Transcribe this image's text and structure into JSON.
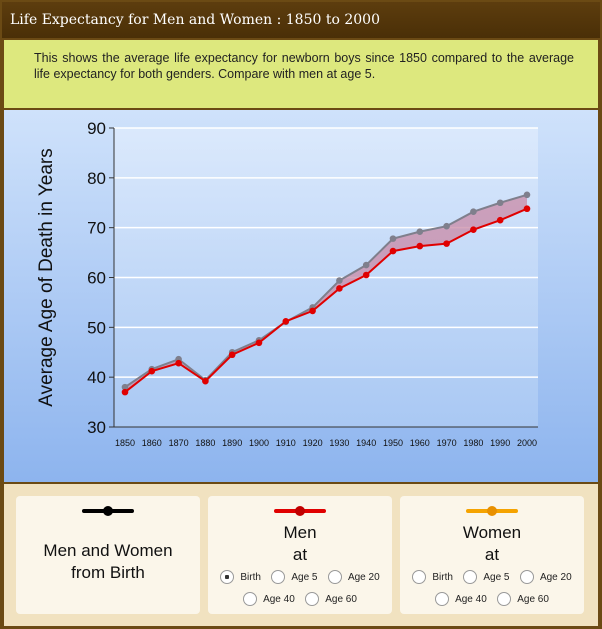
{
  "title": "Life Expectancy for Men and Women : 1850 to 2000",
  "description": "This shows the average life expectancy for newborn boys since 1850 compared to the average life expectancy for both genders. Compare with men at age 5.",
  "colors": {
    "men_and_women": "#7f7f8c",
    "men": "#e00000",
    "women": "#f5a300",
    "fill_between": "#c98aa5"
  },
  "chart_data": {
    "type": "line",
    "ylabel": "Average Age of Death in Years",
    "xlabel": "",
    "ylim": [
      30,
      90
    ],
    "yticks": [
      30,
      40,
      50,
      60,
      70,
      80,
      90
    ],
    "x": [
      1850,
      1860,
      1870,
      1880,
      1890,
      1900,
      1910,
      1920,
      1930,
      1940,
      1950,
      1960,
      1970,
      1980,
      1990,
      2000
    ],
    "grid": true,
    "series": [
      {
        "name": "Men and Women from Birth",
        "color": "#7f7f8c",
        "values": [
          38,
          41.6,
          43.6,
          39.4,
          45,
          47.4,
          51.1,
          54,
          59.4,
          62.5,
          67.8,
          69.2,
          70.3,
          73.2,
          75,
          76.6
        ]
      },
      {
        "name": "Men at Birth",
        "color": "#e00000",
        "values": [
          37,
          41.2,
          42.8,
          39.2,
          44.5,
          46.9,
          51.2,
          53.3,
          57.8,
          60.5,
          65.3,
          66.3,
          66.8,
          69.6,
          71.5,
          73.8
        ]
      }
    ]
  },
  "cards": [
    {
      "title_lines": [
        "Men and Women",
        "from Birth"
      ],
      "color": "#000000",
      "options": []
    },
    {
      "title_lines": [
        "Men",
        "at"
      ],
      "color": "#e00000",
      "options_row1": [
        "Birth",
        "Age 5",
        "Age 20"
      ],
      "options_row2": [
        "Age 40",
        "Age 60"
      ],
      "selected": "Birth"
    },
    {
      "title_lines": [
        "Women",
        "at"
      ],
      "color": "#f5a300",
      "options_row1": [
        "Birth",
        "Age 5",
        "Age 20"
      ],
      "options_row2": [
        "Age 40",
        "Age 60"
      ],
      "selected": ""
    }
  ]
}
